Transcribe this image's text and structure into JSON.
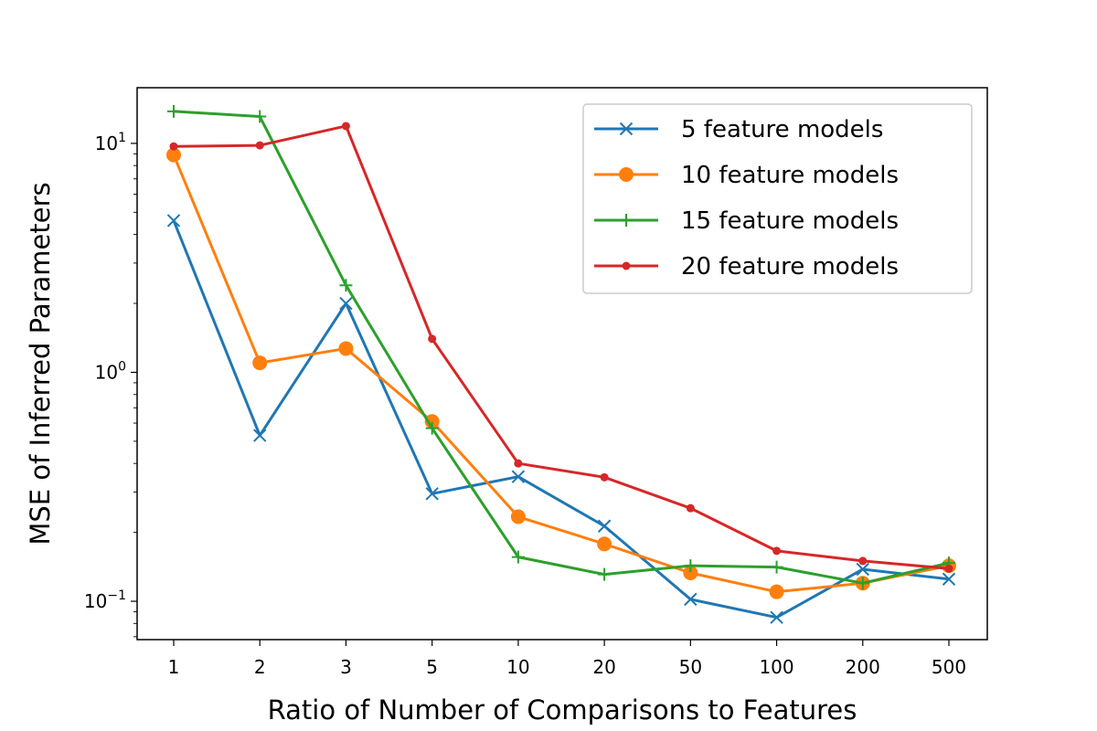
{
  "chart_data": {
    "type": "line",
    "x": [
      "1",
      "2",
      "3",
      "5",
      "10",
      "20",
      "50",
      "100",
      "200",
      "500"
    ],
    "xlabel": "Ratio of Number of Comparisons to Features",
    "ylabel": "MSE of Inferred Parameters",
    "yscale": "log",
    "ylim": [
      0.068,
      17.5
    ],
    "yticks": [
      {
        "value": 0.1,
        "base": "10",
        "exp": "−1"
      },
      {
        "value": 1,
        "base": "10",
        "exp": "0"
      },
      {
        "value": 10,
        "base": "10",
        "exp": "1"
      }
    ],
    "grid": false,
    "legend_position": "top-right",
    "series": [
      {
        "name": "5 feature models",
        "color": "#1f77b4",
        "marker": "x",
        "values": [
          4.6,
          0.53,
          2.0,
          0.295,
          0.35,
          0.213,
          0.102,
          0.085,
          0.138,
          0.125
        ]
      },
      {
        "name": "10 feature models",
        "color": "#ff7f0e",
        "marker": "circle",
        "values": [
          8.9,
          1.1,
          1.27,
          0.61,
          0.234,
          0.178,
          0.133,
          0.11,
          0.12,
          0.143
        ]
      },
      {
        "name": "15 feature models",
        "color": "#2ca02c",
        "marker": "plus",
        "values": [
          13.8,
          13.1,
          2.4,
          0.57,
          0.156,
          0.131,
          0.143,
          0.141,
          0.12,
          0.147
        ]
      },
      {
        "name": "20 feature models",
        "color": "#d62728",
        "marker": "dot",
        "values": [
          9.7,
          9.8,
          11.9,
          1.4,
          0.4,
          0.348,
          0.255,
          0.166,
          0.15,
          0.139
        ]
      }
    ]
  }
}
